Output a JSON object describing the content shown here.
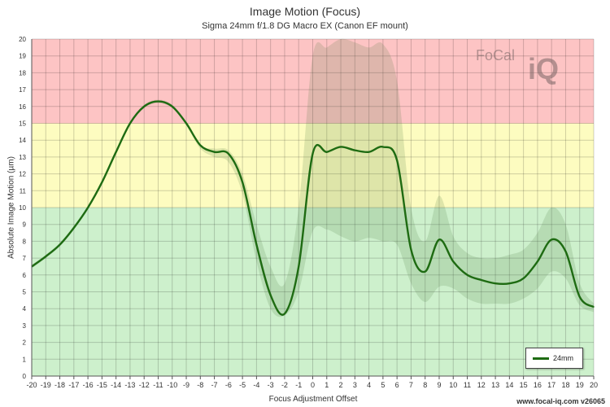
{
  "chart_data": {
    "type": "line",
    "title": "Image Motion (Focus)",
    "subtitle": "Sigma 24mm f/1.8 DG Macro EX (Canon EF mount)",
    "xlabel": "Focus Adjustment Offset",
    "ylabel": "Absolute Image Motion (µm)",
    "xlim": [
      -20,
      20
    ],
    "ylim": [
      0,
      20
    ],
    "x_ticks": [
      -20,
      -19,
      -18,
      -17,
      -16,
      -15,
      -14,
      -13,
      -12,
      -11,
      -10,
      -9,
      -8,
      -7,
      -6,
      -5,
      -4,
      -3,
      -2,
      -1,
      0,
      1,
      2,
      3,
      4,
      5,
      6,
      7,
      8,
      9,
      10,
      11,
      12,
      13,
      14,
      15,
      16,
      17,
      18,
      19,
      20
    ],
    "y_ticks": [
      0,
      1,
      2,
      3,
      4,
      5,
      6,
      7,
      8,
      9,
      10,
      11,
      12,
      13,
      14,
      15,
      16,
      17,
      18,
      19,
      20
    ],
    "grid": true,
    "bands": [
      {
        "from": 0,
        "to": 10,
        "color": "#cdf0cc"
      },
      {
        "from": 10,
        "to": 15,
        "color": "#fdfcc0"
      },
      {
        "from": 15,
        "to": 20,
        "color": "#fdc4c4"
      }
    ],
    "series": [
      {
        "name": "24mm",
        "color": "#1e6b12",
        "x": [
          -20,
          -19,
          -18,
          -17,
          -16,
          -15,
          -14,
          -13,
          -12,
          -11,
          -10,
          -9,
          -8,
          -7,
          -6,
          -5,
          -4,
          -3,
          -2,
          -1,
          0,
          1,
          2,
          3,
          4,
          5,
          6,
          7,
          8,
          9,
          10,
          11,
          12,
          13,
          14,
          15,
          16,
          17,
          18,
          19,
          20
        ],
        "y": [
          6.5,
          7.1,
          7.8,
          8.8,
          10.0,
          11.5,
          13.3,
          15.0,
          16.0,
          16.3,
          16.0,
          15.0,
          13.7,
          13.3,
          13.2,
          11.5,
          7.8,
          4.8,
          3.7,
          6.5,
          13.2,
          13.3,
          13.6,
          13.4,
          13.3,
          13.6,
          12.8,
          7.5,
          6.2,
          8.1,
          6.8,
          6.0,
          5.7,
          5.5,
          5.5,
          5.8,
          6.8,
          8.1,
          7.4,
          4.7,
          4.1
        ],
        "band_upper": [
          6.6,
          7.2,
          7.9,
          8.9,
          10.1,
          11.6,
          13.4,
          15.1,
          16.1,
          16.4,
          16.1,
          15.1,
          13.7,
          13.5,
          13.4,
          12.0,
          9.0,
          6.5,
          5.5,
          10.0,
          19.0,
          19.5,
          20.0,
          19.8,
          19.5,
          19.7,
          17.5,
          10.0,
          8.0,
          10.7,
          8.3,
          7.3,
          7.0,
          7.0,
          7.2,
          7.5,
          8.5,
          10.0,
          9.0,
          5.5,
          4.3
        ],
        "band_lower": [
          6.4,
          7.0,
          7.7,
          8.7,
          9.9,
          11.4,
          13.2,
          14.9,
          15.9,
          16.2,
          15.9,
          14.9,
          13.5,
          13.0,
          12.7,
          10.8,
          6.8,
          4.0,
          3.6,
          5.0,
          8.6,
          8.7,
          8.3,
          8.0,
          8.2,
          8.0,
          7.8,
          5.5,
          4.4,
          5.3,
          5.2,
          4.6,
          4.3,
          4.3,
          4.3,
          4.6,
          5.2,
          6.2,
          5.8,
          4.2,
          3.8
        ]
      }
    ],
    "legend": {
      "position": "bottom-right"
    }
  },
  "footer": "www.focal-iq.com  v26065",
  "logo": {
    "text": "FoCal",
    "iq": "iQ"
  }
}
